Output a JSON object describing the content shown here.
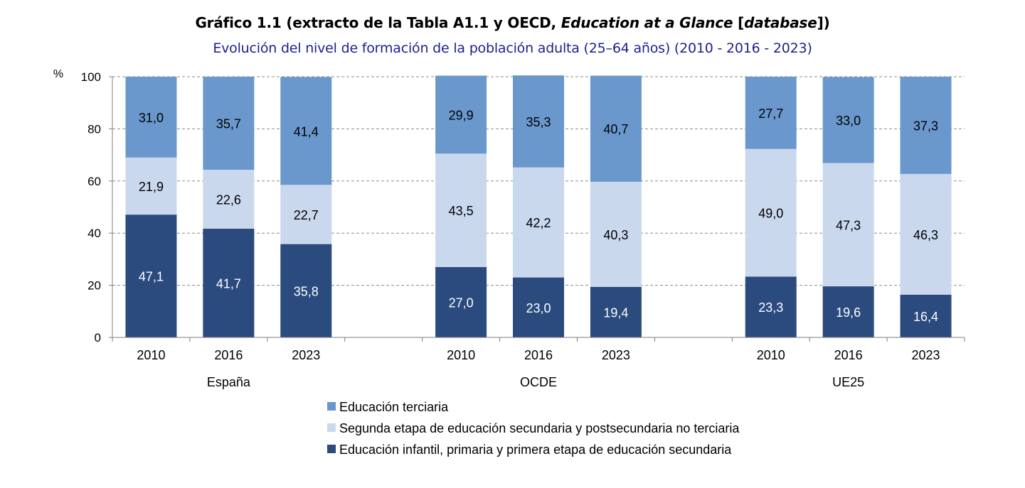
{
  "chart_data": {
    "type": "bar",
    "stacked": true,
    "title": {
      "prefix": "Gráfico 1.1 (extracto de la Tabla A1.1 y OECD, ",
      "italic": "Education at a Glance",
      "middle": " [",
      "italic2": "database",
      "suffix": "])"
    },
    "subtitle": "Evolución del nivel de formación de la población adulta (25–64 años) (2010 - 2016 - 2023)",
    "ylabel": "%",
    "ylim": [
      0,
      100
    ],
    "yticks": [
      0,
      20,
      40,
      60,
      80,
      100
    ],
    "grid": true,
    "groups": [
      {
        "name": "España",
        "categories": [
          "2010",
          "2016",
          "2023"
        ]
      },
      {
        "name": "OCDE",
        "categories": [
          "2010",
          "2016",
          "2023"
        ]
      },
      {
        "name": "UE25",
        "categories": [
          "2010",
          "2016",
          "2023"
        ]
      }
    ],
    "series": [
      {
        "name": "Educación infantil, primaria y primera etapa de educación secundaria",
        "color": "#2b4a7e",
        "label_color": "#ffffff",
        "values": [
          47.1,
          41.7,
          35.8,
          27.0,
          23.0,
          19.4,
          23.3,
          19.6,
          16.4
        ],
        "labels": [
          "47,1",
          "41,7",
          "35,8",
          "27,0",
          "23,0",
          "19,4",
          "23,3",
          "19,6",
          "16,4"
        ]
      },
      {
        "name": "Segunda etapa de educación secundaria y postsecundaria no terciaria",
        "color": "#cad8ee",
        "label_color": "#000000",
        "values": [
          21.9,
          22.6,
          22.7,
          43.5,
          42.2,
          40.3,
          49.0,
          47.3,
          46.3
        ],
        "labels": [
          "21,9",
          "22,6",
          "22,7",
          "43,5",
          "42,2",
          "40,3",
          "49,0",
          "47,3",
          "46,3"
        ]
      },
      {
        "name": "Educación terciaria",
        "color": "#6a98cc",
        "label_color": "#000000",
        "values": [
          31.0,
          35.7,
          41.4,
          29.9,
          35.3,
          40.7,
          27.7,
          33.0,
          37.3
        ],
        "labels": [
          "31,0",
          "35,7",
          "41,4",
          "29,9",
          "35,3",
          "40,7",
          "27,7",
          "33,0",
          "37,3"
        ]
      }
    ],
    "legend": {
      "placement": "bottom-center",
      "order": [
        2,
        1,
        0
      ]
    }
  }
}
